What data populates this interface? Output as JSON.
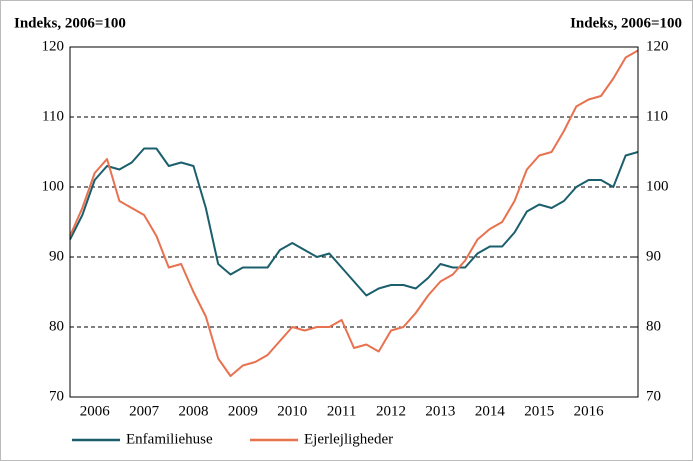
{
  "chart_data": {
    "type": "line",
    "ylabel": "Indeks, 2006=100",
    "y2label": "Indeks, 2006=100",
    "x": [
      2006.0,
      2006.25,
      2006.5,
      2006.75,
      2007.0,
      2007.25,
      2007.5,
      2007.75,
      2008.0,
      2008.25,
      2008.5,
      2008.75,
      2009.0,
      2009.25,
      2009.5,
      2009.75,
      2010.0,
      2010.25,
      2010.5,
      2010.75,
      2011.0,
      2011.25,
      2011.5,
      2011.75,
      2012.0,
      2012.25,
      2012.5,
      2012.75,
      2013.0,
      2013.25,
      2013.5,
      2013.75,
      2014.0,
      2014.25,
      2014.5,
      2014.75,
      2015.0,
      2015.25,
      2015.5,
      2015.75,
      2016.0,
      2016.25,
      2016.5,
      2016.75,
      2017.0,
      2017.25,
      2017.5
    ],
    "series": [
      {
        "name": "Enfamiliehuse",
        "color": "#1b5f6d",
        "values": [
          92.5,
          96,
          101,
          103,
          102.5,
          103.5,
          105.5,
          105.5,
          103,
          103.5,
          103,
          97,
          89,
          87.5,
          88.5,
          88.5,
          88.5,
          91,
          92,
          91,
          90,
          90.5,
          88.5,
          86.5,
          84.5,
          85.5,
          86,
          86,
          85.5,
          87,
          89,
          88.5,
          88.5,
          90.5,
          91.5,
          91.5,
          93.5,
          96.5,
          97.5,
          97,
          98,
          100,
          101,
          101,
          100,
          104.5,
          105
        ]
      },
      {
        "name": "Ejerlejligheder",
        "color": "#e8714f",
        "values": [
          93,
          97,
          102,
          104,
          98,
          97,
          96,
          93,
          88.5,
          89,
          85,
          81.5,
          75.5,
          73,
          74.5,
          75,
          76,
          78,
          80,
          79.5,
          80,
          80,
          81,
          77,
          77.5,
          76.5,
          79.5,
          80,
          82,
          84.5,
          86.5,
          87.5,
          89.5,
          92.5,
          94,
          95,
          98,
          102.5,
          104.5,
          105,
          108,
          111.5,
          112.5,
          113,
          115.5,
          118.5,
          119.5
        ]
      }
    ],
    "xlim": [
      2006.0,
      2017.5
    ],
    "xticks": [
      {
        "value": 2006.5,
        "label": "2006"
      },
      {
        "value": 2007.5,
        "label": "2007"
      },
      {
        "value": 2008.5,
        "label": "2008"
      },
      {
        "value": 2009.5,
        "label": "2009"
      },
      {
        "value": 2010.5,
        "label": "2010"
      },
      {
        "value": 2011.5,
        "label": "2011"
      },
      {
        "value": 2012.5,
        "label": "2012"
      },
      {
        "value": 2013.5,
        "label": "2013"
      },
      {
        "value": 2014.5,
        "label": "2014"
      },
      {
        "value": 2015.5,
        "label": "2015"
      },
      {
        "value": 2016.5,
        "label": "2016"
      }
    ],
    "ylim": [
      70,
      120
    ],
    "yticks": [
      70,
      80,
      90,
      100,
      110,
      120
    ],
    "y2lim": [
      70,
      120
    ],
    "y2ticks": [
      70,
      80,
      90,
      100,
      110,
      120
    ],
    "grid": true,
    "legend": "bottom-left"
  }
}
